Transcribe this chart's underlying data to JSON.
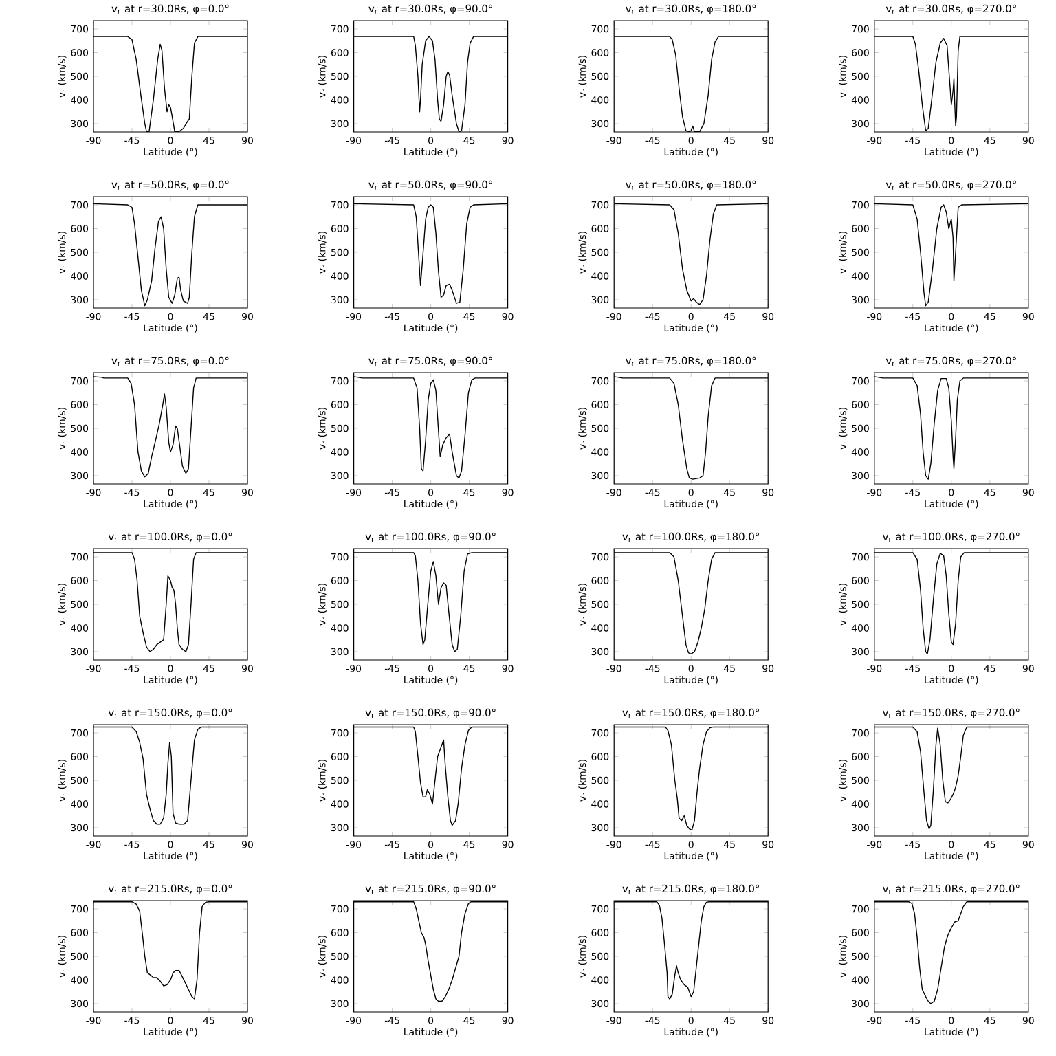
{
  "chart_data": [
    {
      "type": "line",
      "title": "v$_{r}$ at r=30.0Rs, φ=0.0°",
      "xlabel": "Latitude (°)",
      "ylabel": "v$_{r}$ (km/s)",
      "color": "#000000",
      "xlim": [
        -90,
        90
      ],
      "ylim": [
        265,
        735
      ],
      "xticks": [
        -90,
        -45,
        0,
        45,
        90
      ],
      "yticks": [
        300,
        400,
        500,
        600,
        700
      ],
      "x": [
        -90,
        -50,
        -45,
        -40,
        -35,
        -30,
        -28,
        -25,
        -20,
        -15,
        -12,
        -10,
        -7,
        -4,
        -2,
        0,
        2,
        5,
        10,
        15,
        20,
        22,
        25,
        28,
        32,
        90
      ],
      "values": [
        668,
        668,
        655,
        570,
        430,
        300,
        266,
        266,
        400,
        570,
        635,
        610,
        450,
        350,
        380,
        370,
        330,
        266,
        266,
        280,
        310,
        320,
        500,
        640,
        668,
        668
      ]
    },
    {
      "type": "line",
      "title": "v$_{r}$ at r=30.0Rs, φ=90.0°",
      "xlabel": "Latitude (°)",
      "ylabel": "v$_{r}$ (km/s)",
      "color": "#000000",
      "xlim": [
        -90,
        90
      ],
      "ylim": [
        265,
        735
      ],
      "xticks": [
        -90,
        -45,
        0,
        45,
        90
      ],
      "yticks": [
        300,
        400,
        500,
        600,
        700
      ],
      "x": [
        -90,
        -20,
        -18,
        -15,
        -13,
        -12,
        -10,
        -6,
        -2,
        2,
        5,
        8,
        10,
        12,
        15,
        18,
        20,
        22,
        25,
        30,
        33,
        36,
        40,
        43,
        46,
        50,
        90
      ],
      "values": [
        668,
        668,
        630,
        500,
        350,
        400,
        550,
        650,
        668,
        650,
        570,
        400,
        320,
        310,
        380,
        500,
        520,
        505,
        420,
        300,
        266,
        270,
        380,
        560,
        640,
        668,
        668
      ]
    },
    {
      "type": "line",
      "title": "v$_{r}$ at r=30.0Rs, φ=180.0°",
      "xlabel": "Latitude (°)",
      "ylabel": "v$_{r}$ (km/s)",
      "color": "#000000",
      "xlim": [
        -90,
        90
      ],
      "ylim": [
        265,
        735
      ],
      "xticks": [
        -90,
        -45,
        0,
        45,
        90
      ],
      "yticks": [
        300,
        400,
        500,
        600,
        700
      ],
      "x": [
        -90,
        -25,
        -22,
        -18,
        -14,
        -10,
        -6,
        -2,
        0,
        2,
        4,
        10,
        15,
        20,
        24,
        28,
        32,
        90
      ],
      "values": [
        668,
        668,
        655,
        590,
        450,
        330,
        270,
        266,
        270,
        290,
        266,
        266,
        300,
        420,
        570,
        645,
        668,
        668
      ]
    },
    {
      "type": "line",
      "title": "v$_{r}$ at r=30.0Rs, φ=270.0°",
      "xlabel": "Latitude (°)",
      "ylabel": "v$_{r}$ (km/s)",
      "color": "#000000",
      "xlim": [
        -90,
        90
      ],
      "ylim": [
        265,
        735
      ],
      "xticks": [
        -90,
        -45,
        0,
        45,
        90
      ],
      "yticks": [
        300,
        400,
        500,
        600,
        700
      ],
      "x": [
        -90,
        -45,
        -42,
        -38,
        -34,
        -30,
        -27,
        -23,
        -18,
        -13,
        -9,
        -5,
        -2,
        0,
        2,
        3,
        4,
        5,
        6,
        8,
        10,
        90
      ],
      "values": [
        668,
        668,
        635,
        520,
        380,
        270,
        280,
        400,
        560,
        640,
        660,
        630,
        480,
        380,
        440,
        490,
        380,
        290,
        330,
        610,
        668,
        668
      ]
    },
    {
      "type": "line",
      "title": "v$_{r}$ at r=50.0Rs, φ=0.0°",
      "xlabel": "Latitude (°)",
      "ylabel": "v$_{r}$ (km/s)",
      "color": "#000000",
      "xlim": [
        -90,
        90
      ],
      "ylim": [
        265,
        735
      ],
      "xticks": [
        -90,
        -45,
        0,
        45,
        90
      ],
      "yticks": [
        300,
        400,
        500,
        600,
        700
      ],
      "x": [
        -90,
        -50,
        -45,
        -42,
        -38,
        -34,
        -30,
        -27,
        -22,
        -18,
        -14,
        -11,
        -8,
        -5,
        -2,
        2,
        5,
        8,
        10,
        12,
        15,
        20,
        22,
        25,
        28,
        32,
        90
      ],
      "values": [
        705,
        700,
        690,
        620,
        480,
        340,
        275,
        300,
        380,
        520,
        630,
        650,
        600,
        430,
        310,
        285,
        320,
        390,
        395,
        340,
        295,
        285,
        310,
        500,
        650,
        700,
        700
      ]
    },
    {
      "type": "line",
      "title": "v$_{r}$ at r=50.0Rs, φ=90.0°",
      "xlabel": "Latitude (°)",
      "ylabel": "v$_{r}$ (km/s)",
      "color": "#000000",
      "xlim": [
        -90,
        90
      ],
      "ylim": [
        265,
        735
      ],
      "xticks": [
        -90,
        -45,
        0,
        45,
        90
      ],
      "yticks": [
        300,
        400,
        500,
        600,
        700
      ],
      "x": [
        -90,
        -20,
        -17,
        -14,
        -12,
        -10,
        -6,
        -3,
        0,
        3,
        6,
        9,
        12,
        15,
        18,
        22,
        25,
        30,
        34,
        38,
        42,
        46,
        50,
        90
      ],
      "values": [
        705,
        700,
        650,
        480,
        360,
        450,
        640,
        690,
        700,
        690,
        580,
        420,
        310,
        320,
        360,
        365,
        340,
        285,
        290,
        430,
        620,
        690,
        700,
        705
      ]
    },
    {
      "type": "line",
      "title": "v$_{r}$ at r=50.0Rs, φ=180.0°",
      "xlabel": "Latitude (°)",
      "ylabel": "v$_{r}$ (km/s)",
      "color": "#000000",
      "xlim": [
        -90,
        90
      ],
      "ylim": [
        265,
        735
      ],
      "xticks": [
        -90,
        -45,
        0,
        45,
        90
      ],
      "yticks": [
        300,
        400,
        500,
        600,
        700
      ],
      "x": [
        -90,
        -25,
        -20,
        -15,
        -10,
        -5,
        0,
        3,
        6,
        10,
        14,
        18,
        22,
        26,
        30,
        90
      ],
      "values": [
        705,
        700,
        680,
        580,
        430,
        340,
        295,
        305,
        290,
        280,
        300,
        400,
        550,
        660,
        700,
        705
      ]
    },
    {
      "type": "line",
      "title": "v$_{r}$ at r=50.0Rs, φ=270.0°",
      "xlabel": "Latitude (°)",
      "ylabel": "v$_{r}$ (km/s)",
      "color": "#000000",
      "xlim": [
        -90,
        90
      ],
      "ylim": [
        265,
        735
      ],
      "xticks": [
        -90,
        -45,
        0,
        45,
        90
      ],
      "yticks": [
        300,
        400,
        500,
        600,
        700
      ],
      "x": [
        -90,
        -45,
        -40,
        -36,
        -32,
        -30,
        -27,
        -22,
        -17,
        -12,
        -9,
        -6,
        -3,
        0,
        2,
        3,
        5,
        8,
        12,
        90
      ],
      "values": [
        705,
        700,
        640,
        500,
        330,
        275,
        290,
        430,
        600,
        690,
        700,
        670,
        600,
        640,
        560,
        380,
        500,
        690,
        700,
        705
      ]
    },
    {
      "type": "line",
      "title": "v$_{r}$ at r=75.0Rs, φ=0.0°",
      "xlabel": "Latitude (°)",
      "ylabel": "v$_{r}$ (km/s)",
      "color": "#000000",
      "xlim": [
        -90,
        90
      ],
      "ylim": [
        265,
        735
      ],
      "xticks": [
        -90,
        -45,
        0,
        45,
        90
      ],
      "yticks": [
        300,
        400,
        500,
        600,
        700
      ],
      "x": [
        -90,
        -80,
        -78,
        -50,
        -46,
        -42,
        -38,
        -34,
        -30,
        -26,
        -22,
        -18,
        -13,
        -9,
        -7,
        -5,
        -2,
        0,
        3,
        6,
        8,
        11,
        14,
        18,
        21,
        24,
        27,
        30,
        90
      ],
      "values": [
        718,
        715,
        712,
        712,
        690,
        600,
        400,
        320,
        295,
        310,
        380,
        440,
        520,
        600,
        645,
        590,
        440,
        400,
        430,
        510,
        500,
        420,
        340,
        310,
        330,
        500,
        670,
        712,
        712
      ]
    },
    {
      "type": "line",
      "title": "v$_{r}$ at r=75.0Rs, φ=90.0°",
      "xlabel": "Latitude (°)",
      "ylabel": "v$_{r}$ (km/s)",
      "color": "#000000",
      "xlim": [
        -90,
        90
      ],
      "ylim": [
        265,
        735
      ],
      "xticks": [
        -90,
        -45,
        0,
        45,
        90
      ],
      "yticks": [
        300,
        400,
        500,
        600,
        700
      ],
      "x": [
        -90,
        -80,
        -20,
        -16,
        -13,
        -11,
        -9,
        -6,
        -3,
        0,
        3,
        6,
        9,
        11,
        14,
        18,
        22,
        25,
        30,
        33,
        36,
        40,
        44,
        48,
        52,
        90
      ],
      "values": [
        718,
        712,
        712,
        670,
        500,
        330,
        320,
        450,
        620,
        690,
        705,
        660,
        490,
        380,
        430,
        460,
        475,
        400,
        300,
        290,
        320,
        470,
        650,
        705,
        712,
        712
      ]
    },
    {
      "type": "line",
      "title": "v$_{r}$ at r=75.0Rs, φ=180.0°",
      "xlabel": "Latitude (°)",
      "ylabel": "v$_{r}$ (km/s)",
      "color": "#000000",
      "xlim": [
        -90,
        90
      ],
      "ylim": [
        265,
        735
      ],
      "xticks": [
        -90,
        -45,
        0,
        45,
        90
      ],
      "yticks": [
        300,
        400,
        500,
        600,
        700
      ],
      "x": [
        -90,
        -80,
        -25,
        -20,
        -15,
        -10,
        -5,
        -2,
        2,
        10,
        14,
        17,
        20,
        24,
        28,
        90
      ],
      "values": [
        718,
        712,
        712,
        690,
        600,
        450,
        330,
        290,
        285,
        290,
        300,
        400,
        550,
        680,
        712,
        712
      ]
    },
    {
      "type": "line",
      "title": "v$_{r}$ at r=75.0Rs, φ=270.0°",
      "xlabel": "Latitude (°)",
      "ylabel": "v$_{r}$ (km/s)",
      "color": "#000000",
      "xlim": [
        -90,
        90
      ],
      "ylim": [
        265,
        735
      ],
      "xticks": [
        -90,
        -45,
        0,
        45,
        90
      ],
      "yticks": [
        300,
        400,
        500,
        600,
        700
      ],
      "x": [
        -90,
        -80,
        -45,
        -40,
        -36,
        -33,
        -30,
        -27,
        -24,
        -20,
        -16,
        -12,
        -6,
        -3,
        0,
        2,
        3,
        5,
        7,
        10,
        14,
        90
      ],
      "values": [
        718,
        712,
        712,
        680,
        560,
        400,
        300,
        285,
        350,
        520,
        660,
        710,
        710,
        670,
        530,
        380,
        330,
        460,
        620,
        700,
        712,
        712
      ]
    },
    {
      "type": "line",
      "title": "v$_{r}$ at r=100.0Rs, φ=0.0°",
      "xlabel": "Latitude (°)",
      "ylabel": "v$_{r}$ (km/s)",
      "color": "#000000",
      "xlim": [
        -90,
        90
      ],
      "ylim": [
        265,
        735
      ],
      "xticks": [
        -90,
        -45,
        0,
        45,
        90
      ],
      "yticks": [
        300,
        400,
        500,
        600,
        700
      ],
      "x": [
        -90,
        -45,
        -42,
        -39,
        -36,
        -32,
        -28,
        -24,
        -20,
        -16,
        -12,
        -8,
        -5,
        -3,
        0,
        2,
        4,
        6,
        8,
        10,
        14,
        18,
        21,
        24,
        27,
        30,
        90
      ],
      "values": [
        718,
        718,
        690,
        600,
        450,
        380,
        320,
        300,
        310,
        330,
        340,
        350,
        500,
        620,
        600,
        570,
        560,
        500,
        400,
        330,
        310,
        300,
        330,
        500,
        690,
        718,
        718
      ]
    },
    {
      "type": "line",
      "title": "v$_{r}$ at r=100.0Rs, φ=90.0°",
      "xlabel": "Latitude (°)",
      "ylabel": "v$_{r}$ (km/s)",
      "color": "#000000",
      "xlim": [
        -90,
        90
      ],
      "ylim": [
        265,
        735
      ],
      "xticks": [
        -90,
        -45,
        0,
        45,
        90
      ],
      "yticks": [
        300,
        400,
        500,
        600,
        700
      ],
      "x": [
        -90,
        -20,
        -18,
        -15,
        -12,
        -9,
        -7,
        -3,
        0,
        3,
        6,
        9,
        12,
        15,
        18,
        21,
        25,
        28,
        31,
        35,
        39,
        43,
        48,
        90
      ],
      "values": [
        718,
        718,
        705,
        600,
        420,
        330,
        350,
        520,
        640,
        680,
        620,
        500,
        570,
        590,
        580,
        470,
        330,
        300,
        310,
        450,
        640,
        712,
        718,
        718
      ]
    },
    {
      "type": "line",
      "title": "v$_{r}$ at r=100.0Rs, φ=180.0°",
      "xlabel": "Latitude (°)",
      "ylabel": "v$_{r}$ (km/s)",
      "color": "#000000",
      "xlim": [
        -90,
        90
      ],
      "ylim": [
        265,
        735
      ],
      "xticks": [
        -90,
        -45,
        0,
        45,
        90
      ],
      "yticks": [
        300,
        400,
        500,
        600,
        700
      ],
      "x": [
        -90,
        -25,
        -20,
        -15,
        -10,
        -6,
        -3,
        0,
        4,
        8,
        12,
        16,
        20,
        24,
        28,
        90
      ],
      "values": [
        718,
        718,
        700,
        600,
        450,
        330,
        295,
        290,
        300,
        340,
        400,
        480,
        600,
        690,
        718,
        718
      ]
    },
    {
      "type": "line",
      "title": "v$_{r}$ at r=100.0Rs, φ=270.0°",
      "xlabel": "Latitude (°)",
      "ylabel": "v$_{r}$ (km/s)",
      "color": "#000000",
      "xlim": [
        -90,
        90
      ],
      "ylim": [
        265,
        735
      ],
      "xticks": [
        -90,
        -45,
        0,
        45,
        90
      ],
      "yticks": [
        300,
        400,
        500,
        600,
        700
      ],
      "x": [
        -90,
        -45,
        -40,
        -36,
        -33,
        -30,
        -28,
        -25,
        -21,
        -17,
        -13,
        -9,
        -6,
        -3,
        0,
        2,
        5,
        8,
        11,
        15,
        90
      ],
      "values": [
        718,
        718,
        690,
        560,
        400,
        300,
        290,
        350,
        520,
        670,
        715,
        705,
        620,
        460,
        340,
        330,
        420,
        600,
        700,
        718,
        718
      ]
    },
    {
      "type": "line",
      "title": "v$_{r}$ at r=150.0Rs, φ=0.0°",
      "xlabel": "Latitude (°)",
      "ylabel": "v$_{r}$ (km/s)",
      "color": "#000000",
      "xlim": [
        -90,
        90
      ],
      "ylim": [
        265,
        735
      ],
      "xticks": [
        -90,
        -45,
        0,
        45,
        90
      ],
      "yticks": [
        300,
        400,
        500,
        600,
        700
      ],
      "x": [
        -90,
        -45,
        -40,
        -36,
        -32,
        -28,
        -24,
        -20,
        -16,
        -12,
        -8,
        -5,
        -3,
        -1,
        1,
        3,
        6,
        10,
        16,
        20,
        24,
        28,
        32,
        36,
        90
      ],
      "values": [
        725,
        725,
        705,
        660,
        590,
        440,
        380,
        330,
        315,
        315,
        340,
        440,
        570,
        660,
        600,
        360,
        320,
        315,
        315,
        330,
        500,
        670,
        715,
        725,
        725
      ]
    },
    {
      "type": "line",
      "title": "v$_{r}$ at r=150.0Rs, φ=90.0°",
      "xlabel": "Latitude (°)",
      "ylabel": "v$_{r}$ (km/s)",
      "color": "#000000",
      "xlim": [
        -90,
        90
      ],
      "ylim": [
        265,
        735
      ],
      "xticks": [
        -90,
        -45,
        0,
        45,
        90
      ],
      "yticks": [
        300,
        400,
        500,
        600,
        700
      ],
      "x": [
        -90,
        -20,
        -18,
        -15,
        -12,
        -9,
        -6,
        -4,
        -1,
        2,
        5,
        8,
        12,
        15,
        17,
        20,
        23,
        25,
        29,
        32,
        36,
        40,
        44,
        48,
        90
      ],
      "values": [
        725,
        725,
        705,
        600,
        490,
        430,
        430,
        460,
        440,
        400,
        500,
        600,
        640,
        670,
        560,
        430,
        330,
        310,
        330,
        400,
        550,
        650,
        710,
        725,
        725
      ]
    },
    {
      "type": "line",
      "title": "v$_{r}$ at r=150.0Rs, φ=180.0°",
      "xlabel": "Latitude (°)",
      "ylabel": "v$_{r}$ (km/s)",
      "color": "#000000",
      "xlim": [
        -90,
        90
      ],
      "ylim": [
        265,
        735
      ],
      "xticks": [
        -90,
        -45,
        0,
        45,
        90
      ],
      "yticks": [
        300,
        400,
        500,
        600,
        700
      ],
      "x": [
        -90,
        -30,
        -27,
        -23,
        -19,
        -16,
        -14,
        -11,
        -8,
        -5,
        -2,
        1,
        4,
        7,
        10,
        14,
        18,
        22,
        26,
        90
      ],
      "values": [
        725,
        725,
        710,
        650,
        500,
        420,
        340,
        330,
        350,
        310,
        295,
        290,
        330,
        450,
        550,
        650,
        705,
        722,
        725,
        725
      ]
    },
    {
      "type": "line",
      "title": "v$_{r}$ at r=150.0Rs, φ=270.0°",
      "xlabel": "Latitude (°)",
      "ylabel": "v$_{r}$ (km/s)",
      "color": "#000000",
      "xlim": [
        -90,
        90
      ],
      "ylim": [
        265,
        735
      ],
      "xticks": [
        -90,
        -45,
        0,
        45,
        90
      ],
      "yticks": [
        300,
        400,
        500,
        600,
        700
      ],
      "x": [
        -90,
        -45,
        -40,
        -36,
        -32,
        -29,
        -26,
        -24,
        -21,
        -18,
        -16,
        -13,
        -10,
        -7,
        -4,
        -1,
        2,
        5,
        8,
        11,
        14,
        18,
        90
      ],
      "values": [
        725,
        725,
        705,
        620,
        450,
        330,
        295,
        310,
        460,
        650,
        720,
        650,
        500,
        410,
        405,
        420,
        440,
        470,
        520,
        600,
        690,
        725,
        725
      ]
    },
    {
      "type": "line",
      "title": "v$_{r}$ at r=215.0Rs, φ=0.0°",
      "xlabel": "Latitude (°)",
      "ylabel": "v$_{r}$ (km/s)",
      "color": "#000000",
      "xlim": [
        -90,
        90
      ],
      "ylim": [
        265,
        735
      ],
      "xticks": [
        -90,
        -45,
        0,
        45,
        90
      ],
      "yticks": [
        300,
        400,
        500,
        600,
        700
      ],
      "x": [
        -90,
        -45,
        -40,
        -36,
        -33,
        -30,
        -27,
        -23,
        -20,
        -16,
        -12,
        -8,
        -4,
        0,
        3,
        6,
        10,
        13,
        17,
        21,
        25,
        28,
        31,
        34,
        37,
        41,
        45,
        90
      ],
      "values": [
        730,
        730,
        720,
        690,
        600,
        500,
        430,
        420,
        410,
        410,
        395,
        375,
        380,
        400,
        430,
        440,
        440,
        420,
        390,
        360,
        330,
        320,
        400,
        600,
        710,
        728,
        730,
        730
      ]
    },
    {
      "type": "line",
      "title": "v$_{r}$ at r=215.0Rs, φ=90.0°",
      "xlabel": "Latitude (°)",
      "ylabel": "v$_{r}$ (km/s)",
      "color": "#000000",
      "xlim": [
        -90,
        90
      ],
      "ylim": [
        265,
        735
      ],
      "xticks": [
        -90,
        -45,
        0,
        45,
        90
      ],
      "yticks": [
        300,
        400,
        500,
        600,
        700
      ],
      "x": [
        -90,
        -20,
        -17,
        -14,
        -11,
        -8,
        -6,
        -3,
        0,
        3,
        6,
        9,
        13,
        17,
        21,
        25,
        29,
        33,
        36,
        40,
        44,
        47,
        90
      ],
      "values": [
        730,
        730,
        700,
        650,
        600,
        580,
        550,
        480,
        420,
        360,
        320,
        310,
        310,
        330,
        360,
        400,
        450,
        500,
        600,
        680,
        722,
        730,
        730
      ]
    },
    {
      "type": "line",
      "title": "v$_{r}$ at r=215.0Rs, φ=180.0°",
      "xlabel": "Latitude (°)",
      "ylabel": "v$_{r}$ (km/s)",
      "color": "#000000",
      "xlim": [
        -90,
        90
      ],
      "ylim": [
        265,
        735
      ],
      "xticks": [
        -90,
        -45,
        0,
        45,
        90
      ],
      "yticks": [
        300,
        400,
        500,
        600,
        700
      ],
      "x": [
        -90,
        -40,
        -37,
        -34,
        -31,
        -28,
        -27,
        -25,
        -22,
        -19,
        -17,
        -15,
        -12,
        -8,
        -4,
        0,
        3,
        6,
        9,
        12,
        15,
        18,
        21,
        90
      ],
      "values": [
        730,
        730,
        715,
        660,
        550,
        430,
        330,
        320,
        340,
        420,
        460,
        430,
        400,
        380,
        370,
        330,
        350,
        450,
        550,
        650,
        710,
        728,
        730,
        730
      ]
    },
    {
      "type": "line",
      "title": "v$_{r}$ at r=215.0Rs, φ=270.0°",
      "xlabel": "Latitude (°)",
      "ylabel": "v$_{r}$ (km/s)",
      "color": "#000000",
      "xlim": [
        -90,
        90
      ],
      "ylim": [
        265,
        735
      ],
      "xticks": [
        -90,
        -45,
        0,
        45,
        90
      ],
      "yticks": [
        300,
        400,
        500,
        600,
        700
      ],
      "x": [
        -90,
        -50,
        -46,
        -43,
        -40,
        -37,
        -34,
        -30,
        -27,
        -24,
        -20,
        -16,
        -12,
        -8,
        -4,
        0,
        4,
        8,
        11,
        14,
        18,
        90
      ],
      "values": [
        730,
        730,
        722,
        680,
        580,
        450,
        360,
        330,
        310,
        300,
        310,
        360,
        450,
        540,
        590,
        620,
        645,
        650,
        680,
        710,
        730,
        730
      ]
    }
  ]
}
